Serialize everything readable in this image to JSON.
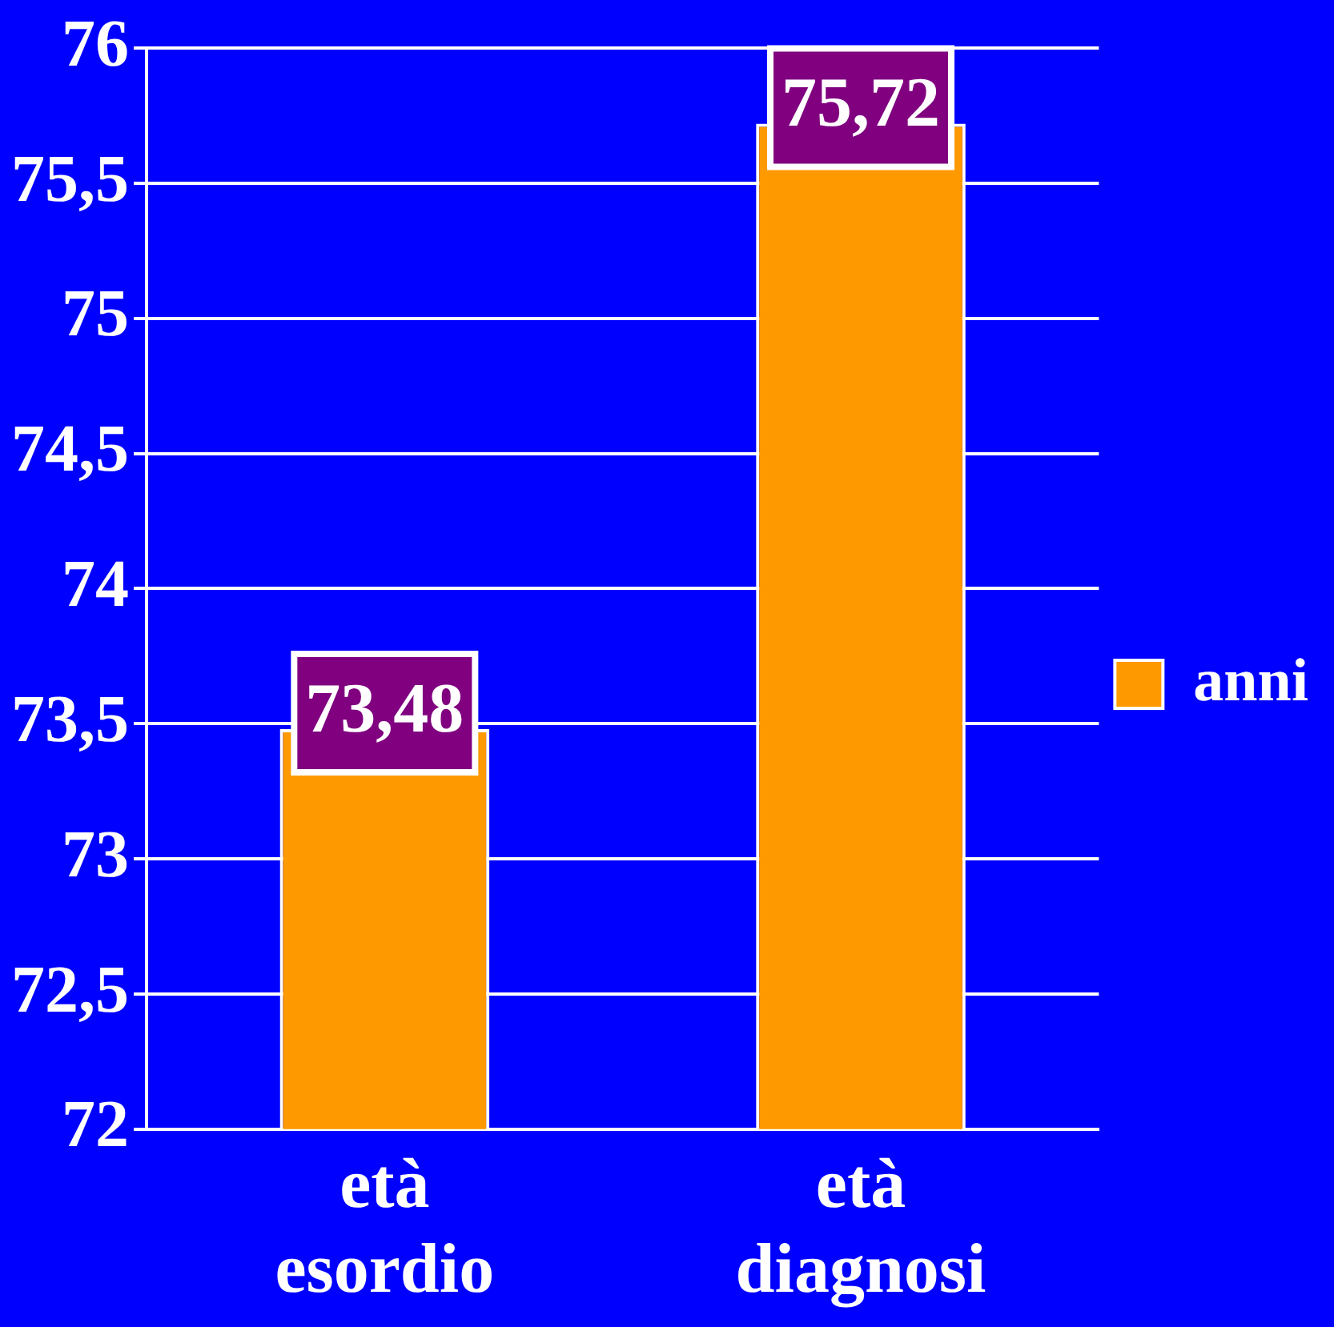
{
  "chart_data": {
    "type": "bar",
    "categories": [
      "età esordio",
      "età diagnosi"
    ],
    "series": [
      {
        "name": "anni",
        "color": "#ff9900",
        "values": [
          73.48,
          75.72
        ],
        "value_labels": [
          "73,48",
          "75,72"
        ]
      }
    ],
    "ylim": [
      72,
      76
    ],
    "yticks": [
      72,
      {
        "value": 72.5,
        "label": "72,5"
      },
      73,
      {
        "value": 73.5,
        "label": "73,5"
      },
      74,
      {
        "value": 74.5,
        "label": "74,5"
      },
      75,
      {
        "value": 75.5,
        "label": "75,5"
      },
      76
    ],
    "grid": "y",
    "legend": "right"
  }
}
